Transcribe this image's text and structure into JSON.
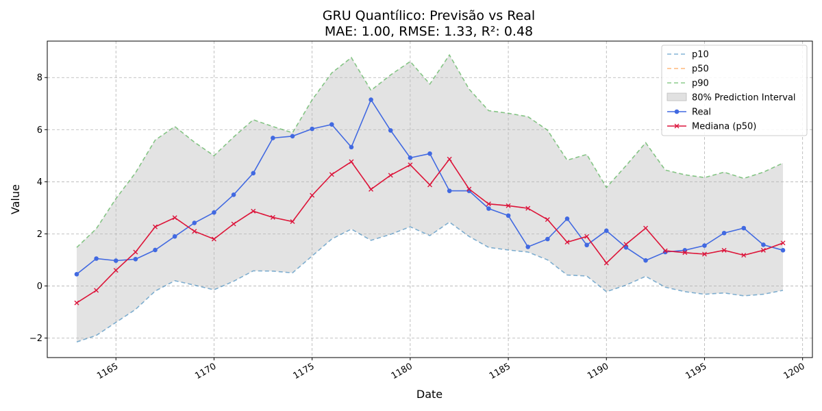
{
  "chart_data": {
    "type": "line",
    "title": "GRU Quantílico: Previsão vs Real",
    "subtitle": "MAE: 1.00, RMSE: 1.33, R²: 0.48",
    "xlabel": "Date",
    "ylabel": "Value",
    "xlim": [
      1161.5,
      1200.5
    ],
    "ylim": [
      -2.75,
      9.4
    ],
    "xticks": [
      1165,
      1170,
      1175,
      1180,
      1185,
      1190,
      1195,
      1200
    ],
    "yticks": [
      -2,
      0,
      2,
      4,
      6,
      8
    ],
    "grid": true,
    "legend_position": "top-right",
    "x": [
      1163,
      1164,
      1165,
      1166,
      1167,
      1168,
      1169,
      1170,
      1171,
      1172,
      1173,
      1174,
      1175,
      1176,
      1177,
      1178,
      1179,
      1180,
      1181,
      1182,
      1183,
      1184,
      1185,
      1186,
      1187,
      1188,
      1189,
      1190,
      1191,
      1192,
      1193,
      1194,
      1195,
      1196,
      1197,
      1198,
      1199
    ],
    "series": [
      {
        "name": "p10",
        "style": "dashed",
        "color": "#1f77b4",
        "values": [
          -2.15,
          -1.9,
          -1.4,
          -0.9,
          -0.2,
          0.2,
          0.03,
          -0.15,
          0.18,
          0.58,
          0.57,
          0.5,
          1.15,
          1.8,
          2.18,
          1.75,
          1.98,
          2.27,
          1.93,
          2.45,
          1.9,
          1.48,
          1.38,
          1.3,
          1.0,
          0.42,
          0.38,
          -0.22,
          0.03,
          0.37,
          -0.05,
          -0.22,
          -0.32,
          -0.27,
          -0.38,
          -0.32,
          -0.17
        ]
      },
      {
        "name": "p50",
        "style": "dashed",
        "color": "#ff7f0e",
        "values": [
          -0.65,
          -0.17,
          0.6,
          1.3,
          2.27,
          2.62,
          2.1,
          1.8,
          2.38,
          2.87,
          2.63,
          2.47,
          3.48,
          4.28,
          4.77,
          3.71,
          4.25,
          4.65,
          3.88,
          4.87,
          3.72,
          3.15,
          3.08,
          2.98,
          2.55,
          1.68,
          1.9,
          0.88,
          1.6,
          2.22,
          1.35,
          1.28,
          1.22,
          1.37,
          1.18,
          1.37,
          1.65
        ]
      },
      {
        "name": "p90",
        "style": "dashed",
        "color": "#2ca02c",
        "values": [
          1.48,
          2.2,
          3.35,
          4.35,
          5.6,
          6.12,
          5.52,
          5.0,
          5.72,
          6.38,
          6.12,
          5.88,
          7.15,
          8.18,
          8.77,
          7.51,
          8.1,
          8.62,
          7.75,
          8.87,
          7.56,
          6.73,
          6.63,
          6.5,
          5.98,
          4.83,
          5.05,
          3.78,
          4.62,
          5.5,
          4.45,
          4.27,
          4.16,
          4.37,
          4.13,
          4.37,
          4.72
        ]
      },
      {
        "name": "Real",
        "style": "solid",
        "marker": "circle",
        "color": "#4169e1",
        "values": [
          0.45,
          1.05,
          0.97,
          1.03,
          1.38,
          1.9,
          2.42,
          2.82,
          3.5,
          4.33,
          5.68,
          5.75,
          6.03,
          6.2,
          5.33,
          7.15,
          5.97,
          4.92,
          5.08,
          3.65,
          3.65,
          2.97,
          2.7,
          1.5,
          1.8,
          2.58,
          1.57,
          2.12,
          1.48,
          0.98,
          1.3,
          1.37,
          1.55,
          2.03,
          2.22,
          1.58,
          1.37
        ]
      },
      {
        "name": "Mediana (p50)",
        "style": "solid",
        "marker": "x",
        "color": "#dc143c",
        "values": [
          -0.65,
          -0.17,
          0.6,
          1.3,
          2.27,
          2.62,
          2.1,
          1.8,
          2.38,
          2.87,
          2.63,
          2.47,
          3.48,
          4.28,
          4.77,
          3.71,
          4.25,
          4.65,
          3.88,
          4.87,
          3.72,
          3.15,
          3.08,
          2.98,
          2.55,
          1.68,
          1.9,
          0.88,
          1.6,
          2.22,
          1.35,
          1.28,
          1.22,
          1.37,
          1.18,
          1.37,
          1.65
        ]
      }
    ],
    "band": {
      "name": "80% Prediction Interval",
      "lower": "p10",
      "upper": "p90",
      "color": "#bdbdbd"
    },
    "legend": [
      "p10",
      "p50",
      "p90",
      "80% Prediction Interval",
      "Real",
      "Mediana (p50)"
    ]
  }
}
